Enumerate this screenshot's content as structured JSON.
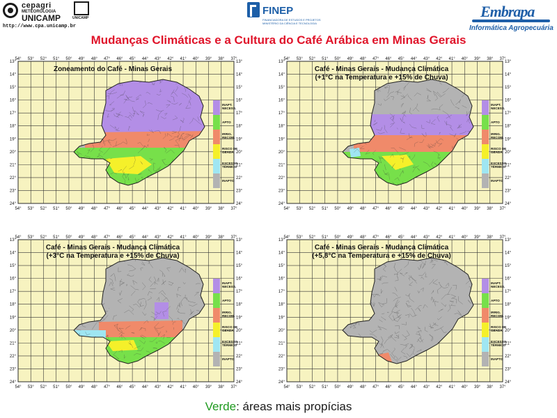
{
  "header": {
    "cepagri": {
      "line1": "cepagri",
      "line2": "METEOROLOGIA",
      "line3": "UNICAMP",
      "unicamp_label": "UNICAMP",
      "url": "http://www.cpa.unicamp.br"
    },
    "finep": {
      "name": "FINEP",
      "sub1": "FINANCIADORA DE ESTUDOS E PROJETOS",
      "sub2": "MINISTÉRIO DA CIÊNCIA E TECNOLOGIA"
    },
    "embrapa": {
      "name": "Embrapa",
      "sub": "Informática Agropecuária"
    }
  },
  "title": "Mudanças Climáticas e a Cultura do Café Arábica em Minas Gerais",
  "axes": {
    "longitudes": [
      "54°",
      "53°",
      "52°",
      "51°",
      "50°",
      "49°",
      "48°",
      "47°",
      "46°",
      "45°",
      "44°",
      "43°",
      "42°",
      "41°",
      "40°",
      "39°",
      "38°",
      "37°"
    ],
    "latitudes": [
      "13°",
      "14°",
      "15°",
      "16°",
      "17°",
      "18°",
      "19°",
      "20°",
      "21°",
      "22°",
      "23°",
      "24°"
    ]
  },
  "legend": [
    {
      "label": "INAPT. NECESS.",
      "color": "#b38ee6"
    },
    {
      "label": "APTO",
      "color": "#77e04a"
    },
    {
      "label": "IRRIG. RECOM.",
      "color": "#f08a6a"
    },
    {
      "label": "RISCO DE GEADA",
      "color": "#f5f02a"
    },
    {
      "label": "EXCESSO TÉRMICO",
      "color": "#9fe6f2"
    },
    {
      "label": "INAPTO",
      "color": "#b3b3b3"
    }
  ],
  "colors": {
    "map_background": "#f7f3c0",
    "grid_line": "#333333",
    "title_red": "#e0142a",
    "highlight_green": "#1f9a1f"
  },
  "panels": [
    {
      "title_line1": "Zoneamento do Café - Minas Gerais",
      "title_line2": "",
      "scenario": "current"
    },
    {
      "title_line1": "Café - Minas Gerais - Mudança Climática",
      "title_line2": "(+1°C na Temperatura e +15% de Chuva)",
      "scenario": "plus1"
    },
    {
      "title_line1": "Café - Minas Gerais - Mudança Climática",
      "title_line2": "(+3°C na Temperatura e +15% de Chuva)",
      "scenario": "plus3"
    },
    {
      "title_line1": "Café - Minas Gerais - Mudança Climática",
      "title_line2": "(+5,8°C na Temperatura e +15% de Chuva)",
      "scenario": "plus58"
    }
  ],
  "footer": {
    "highlight": "Verde",
    "rest": ": áreas mais propícias"
  }
}
